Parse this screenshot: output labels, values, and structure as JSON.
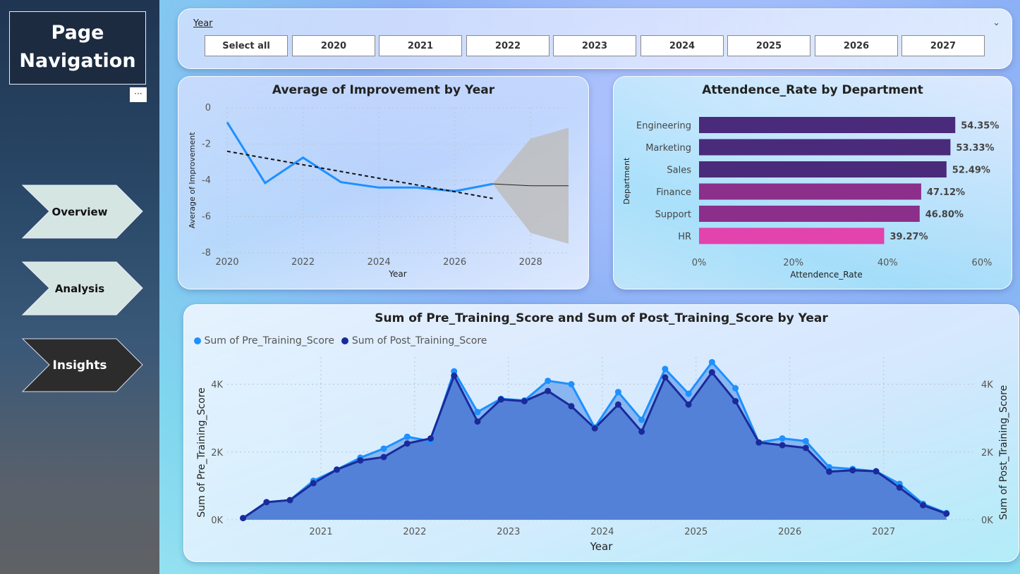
{
  "sidebar": {
    "title_line1": "Page",
    "title_line2": "Navigation",
    "more": "···",
    "items": [
      {
        "label": "Overview",
        "active": false
      },
      {
        "label": "Analysis",
        "active": false
      },
      {
        "label": "Insights",
        "active": true
      }
    ]
  },
  "slicer": {
    "label": "Year",
    "options": [
      "Select all",
      "2020",
      "2021",
      "2022",
      "2023",
      "2024",
      "2025",
      "2026",
      "2027"
    ]
  },
  "colors": {
    "line_blue": "#1e90ff",
    "bar_dark": "#4a2a7a",
    "bar_mid": "#8b2f8a",
    "bar_pink": "#e243ad",
    "pre_score": "#1e90ff",
    "post_score": "#1a2a9a"
  },
  "chart_data": [
    {
      "type": "line",
      "title": "Average of Improvement by Year",
      "xlabel": "Year",
      "ylabel": "Average of Improvement",
      "x": [
        2020,
        2021,
        2022,
        2023,
        2024,
        2025,
        2026,
        2027
      ],
      "values": [
        -0.8,
        -4.15,
        -2.75,
        -4.1,
        -4.4,
        -4.4,
        -4.6,
        -4.2
      ],
      "trend": {
        "x": [
          2020,
          2027
        ],
        "y": [
          -2.4,
          -5.0
        ]
      },
      "forecast": {
        "x": [
          2027,
          2028,
          2029
        ],
        "value": [
          -4.2,
          -4.3,
          -4.3
        ],
        "upper": [
          -4.2,
          -1.7,
          -1.1
        ],
        "lower": [
          -4.2,
          -6.9,
          -7.5
        ]
      },
      "xlim": [
        2020,
        2029
      ],
      "ylim": [
        -8,
        0
      ],
      "xticks": [
        "2020",
        "2022",
        "2024",
        "2026",
        "2028"
      ],
      "yticks": [
        "0",
        "-2",
        "-4",
        "-6",
        "-8"
      ]
    },
    {
      "type": "bar",
      "orientation": "horizontal",
      "title": "Attendence_Rate by Department",
      "xlabel": "Attendence_Rate",
      "ylabel": "Department",
      "categories": [
        "Engineering",
        "Marketing",
        "Sales",
        "Finance",
        "Support",
        "HR"
      ],
      "values": [
        54.35,
        53.33,
        52.49,
        47.12,
        46.8,
        39.27
      ],
      "labels": [
        "54.35%",
        "53.33%",
        "52.49%",
        "47.12%",
        "46.80%",
        "39.27%"
      ],
      "xlim": [
        0,
        60
      ],
      "xticks": [
        "0%",
        "20%",
        "40%",
        "60%"
      ]
    },
    {
      "type": "area",
      "title": "Sum of Pre_Training_Score and Sum of Post_Training_Score by Year",
      "xlabel": "Year",
      "ylabel": "Sum of Pre_Training_Score",
      "ylabel_right": "Sum of Post_Training_Score",
      "legend": "top-left",
      "xlim": [
        2020.0,
        2027.83
      ],
      "ylim": [
        0,
        4800
      ],
      "xticks": [
        "2021",
        "2022",
        "2023",
        "2024",
        "2025",
        "2026",
        "2027"
      ],
      "yticks": [
        "0K",
        "2K",
        "4K"
      ],
      "x": [
        2020.17,
        2020.42,
        2020.67,
        2020.92,
        2021.17,
        2021.42,
        2021.67,
        2021.92,
        2022.17,
        2022.42,
        2022.67,
        2022.92,
        2023.17,
        2023.42,
        2023.67,
        2023.92,
        2024.17,
        2024.42,
        2024.67,
        2024.92,
        2025.17,
        2025.42,
        2025.67,
        2025.92,
        2026.17,
        2026.42,
        2026.67,
        2026.92,
        2027.17,
        2027.42,
        2027.67
      ],
      "series": [
        {
          "name": "Sum of Pre_Training_Score",
          "values": [
            50,
            520,
            580,
            1150,
            1480,
            1830,
            2100,
            2450,
            2320,
            4380,
            3180,
            3570,
            3520,
            4100,
            4000,
            2720,
            3770,
            2950,
            4450,
            3720,
            4650,
            3880,
            2280,
            2400,
            2320,
            1550,
            1500,
            1430,
            1060,
            470,
            200
          ]
        },
        {
          "name": "Sum of Post_Training_Score",
          "values": [
            50,
            520,
            580,
            1080,
            1480,
            1750,
            1850,
            2250,
            2400,
            4250,
            2900,
            3550,
            3500,
            3800,
            3350,
            2700,
            3400,
            2600,
            4200,
            3400,
            4350,
            3500,
            2280,
            2200,
            2120,
            1420,
            1460,
            1430,
            950,
            430,
            180
          ]
        }
      ]
    }
  ]
}
